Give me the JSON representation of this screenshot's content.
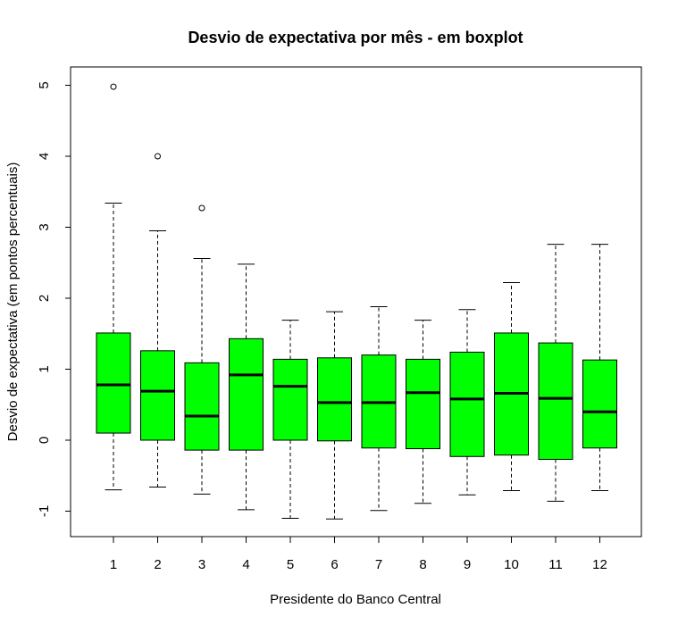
{
  "chart_data": {
    "type": "boxplot",
    "title": "Desvio de expectativa por mês - em boxplot",
    "xlabel": "Presidente do Banco Central",
    "ylabel": "Desvio de expectativa (em pontos percentuais)",
    "ylim": [
      -1.4,
      5.2
    ],
    "yticks": [
      -1,
      0,
      1,
      2,
      3,
      4,
      5
    ],
    "box_color": "#00ff00",
    "categories": [
      "1",
      "2",
      "3",
      "4",
      "5",
      "6",
      "7",
      "8",
      "9",
      "10",
      "11",
      "12"
    ],
    "boxes": [
      {
        "whisker_low": -0.7,
        "q1": 0.1,
        "median": 0.78,
        "q3": 1.51,
        "whisker_high": 3.34,
        "outliers": [
          4.98
        ]
      },
      {
        "whisker_low": -0.66,
        "q1": 0.0,
        "median": 0.69,
        "q3": 1.26,
        "whisker_high": 2.95,
        "outliers": [
          4.0
        ]
      },
      {
        "whisker_low": -0.76,
        "q1": -0.14,
        "median": 0.34,
        "q3": 1.09,
        "whisker_high": 2.56,
        "outliers": [
          3.27
        ]
      },
      {
        "whisker_low": -0.98,
        "q1": -0.14,
        "median": 0.92,
        "q3": 1.43,
        "whisker_high": 2.48,
        "outliers": []
      },
      {
        "whisker_low": -1.1,
        "q1": 0.0,
        "median": 0.76,
        "q3": 1.14,
        "whisker_high": 1.69,
        "outliers": []
      },
      {
        "whisker_low": -1.11,
        "q1": -0.01,
        "median": 0.53,
        "q3": 1.16,
        "whisker_high": 1.81,
        "outliers": []
      },
      {
        "whisker_low": -0.99,
        "q1": -0.11,
        "median": 0.53,
        "q3": 1.2,
        "whisker_high": 1.88,
        "outliers": []
      },
      {
        "whisker_low": -0.89,
        "q1": -0.12,
        "median": 0.67,
        "q3": 1.14,
        "whisker_high": 1.69,
        "outliers": []
      },
      {
        "whisker_low": -0.77,
        "q1": -0.23,
        "median": 0.58,
        "q3": 1.24,
        "whisker_high": 1.84,
        "outliers": []
      },
      {
        "whisker_low": -0.71,
        "q1": -0.21,
        "median": 0.66,
        "q3": 1.51,
        "whisker_high": 2.22,
        "outliers": []
      },
      {
        "whisker_low": -0.86,
        "q1": -0.27,
        "median": 0.59,
        "q3": 1.37,
        "whisker_high": 2.76,
        "outliers": []
      },
      {
        "whisker_low": -0.71,
        "q1": -0.11,
        "median": 0.4,
        "q3": 1.13,
        "whisker_high": 2.76,
        "outliers": []
      }
    ]
  }
}
